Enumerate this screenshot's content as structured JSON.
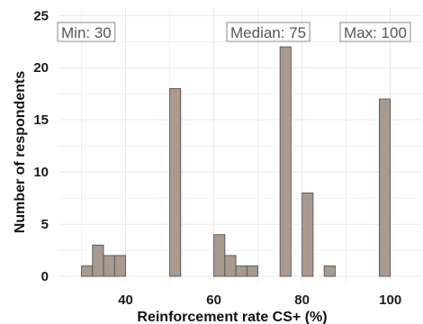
{
  "chart_data": {
    "type": "bar",
    "subtype": "histogram",
    "xlabel": "Reinforcement rate CS+ (%)",
    "ylabel": "Number of respondents",
    "xlim": [
      25,
      107
    ],
    "ylim": [
      -0.6,
      25.8
    ],
    "bin_width": 2.5,
    "x_ticks": [
      40,
      60,
      80,
      100
    ],
    "y_ticks": [
      0,
      5,
      10,
      15,
      20,
      25
    ],
    "grid": true,
    "bars": [
      {
        "start": 30,
        "end": 32.5,
        "count": 1
      },
      {
        "start": 32.5,
        "end": 35,
        "count": 3
      },
      {
        "start": 35,
        "end": 37.5,
        "count": 2
      },
      {
        "start": 37.5,
        "end": 40,
        "count": 2
      },
      {
        "start": 50,
        "end": 52.5,
        "count": 18
      },
      {
        "start": 60,
        "end": 62.5,
        "count": 4
      },
      {
        "start": 62.5,
        "end": 65,
        "count": 2
      },
      {
        "start": 65,
        "end": 67.5,
        "count": 1
      },
      {
        "start": 67.5,
        "end": 70,
        "count": 1
      },
      {
        "start": 75,
        "end": 77.5,
        "count": 22
      },
      {
        "start": 80,
        "end": 82.5,
        "count": 8
      },
      {
        "start": 85,
        "end": 87.5,
        "count": 1
      },
      {
        "start": 97.5,
        "end": 100,
        "count": 17
      }
    ],
    "annotations": [
      {
        "label": "Min: 30"
      },
      {
        "label": "Median: 75"
      },
      {
        "label": "Max: 100"
      }
    ],
    "colors": {
      "bar_fill": "#a89a8e",
      "bar_stroke": "#4a4a4a",
      "grid": "#e6e6e6",
      "annotation_border": "#8a8a8a"
    }
  }
}
